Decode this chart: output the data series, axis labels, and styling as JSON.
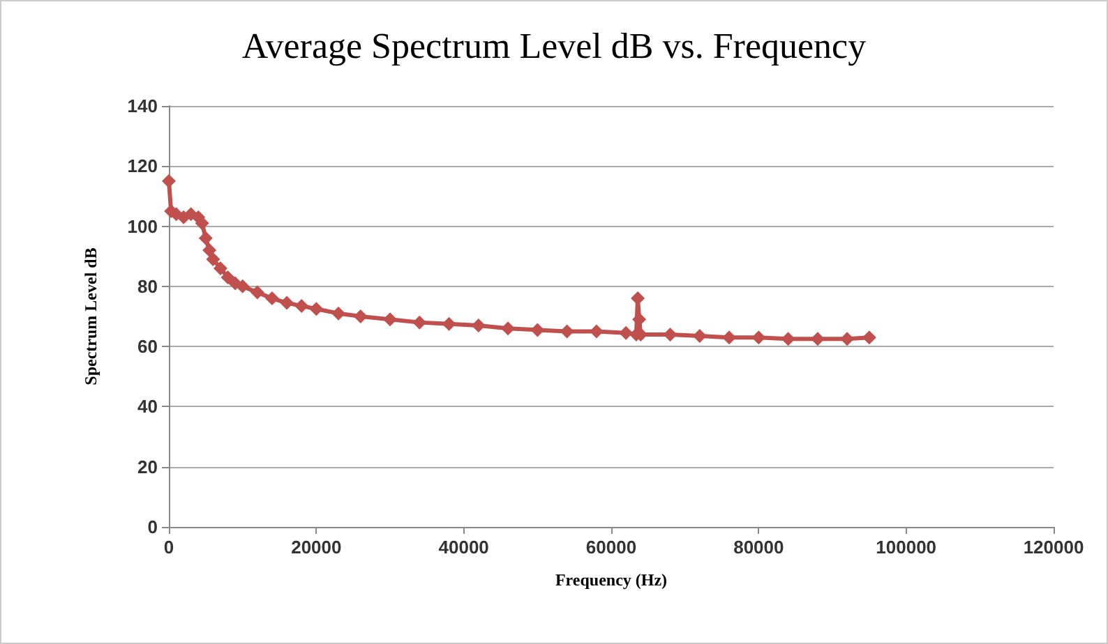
{
  "chart_data": {
    "type": "line",
    "title": "Average Spectrum Level dB vs. Frequency",
    "xlabel": "Frequency (Hz)",
    "ylabel": "Spectrum Level dB",
    "series": [
      {
        "color": "#c0504d",
        "x": [
          0,
          300,
          1000,
          2000,
          3000,
          4000,
          4500,
          5000,
          5500,
          6000,
          7000,
          8000,
          9000,
          10000,
          12000,
          14000,
          16000,
          18000,
          20000,
          23000,
          26000,
          30000,
          34000,
          38000,
          42000,
          46000,
          50000,
          54000,
          58000,
          62000,
          63400,
          63600,
          63800,
          64000,
          68000,
          72000,
          76000,
          80000,
          84000,
          88000,
          92000,
          95000
        ],
        "values": [
          115,
          105,
          104,
          103,
          104,
          103,
          101,
          96,
          92,
          89,
          86,
          83,
          81,
          80,
          78,
          76,
          74.5,
          73.5,
          72.5,
          71,
          70,
          69,
          68,
          67.5,
          67,
          66,
          65.5,
          65,
          65,
          64.5,
          64,
          76,
          69,
          64,
          64,
          63.5,
          63,
          63,
          62.5,
          62.5,
          62.5,
          63
        ]
      }
    ],
    "xlim": [
      0,
      120000
    ],
    "xticks": [
      0,
      20000,
      40000,
      60000,
      80000,
      100000,
      120000
    ],
    "ylim": [
      0,
      140
    ],
    "yticks": [
      0,
      20,
      40,
      60,
      80,
      100,
      120,
      140
    ],
    "grid": "y",
    "marker": "diamond",
    "line_style": "solid"
  }
}
